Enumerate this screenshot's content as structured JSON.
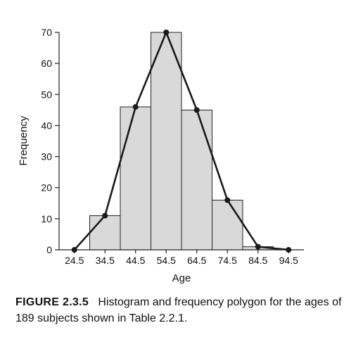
{
  "chart_data": {
    "type": "bar",
    "subtype": "histogram with frequency polygon",
    "title": "",
    "xlabel": "Age",
    "ylabel": "Frequency",
    "ylim": [
      0,
      70
    ],
    "yticks": [
      0,
      10,
      20,
      30,
      40,
      50,
      60,
      70
    ],
    "xticks": [
      "24.5",
      "34.5",
      "44.5",
      "54.5",
      "64.5",
      "74.5",
      "84.5",
      "94.5"
    ],
    "bins": [
      {
        "from": 29.5,
        "to": 39.5,
        "value": 11
      },
      {
        "from": 39.5,
        "to": 49.5,
        "value": 46
      },
      {
        "from": 49.5,
        "to": 59.5,
        "value": 70
      },
      {
        "from": 59.5,
        "to": 69.5,
        "value": 45
      },
      {
        "from": 69.5,
        "to": 79.5,
        "value": 16
      },
      {
        "from": 79.5,
        "to": 89.5,
        "value": 1
      }
    ],
    "polygon": {
      "x": [
        24.5,
        34.5,
        44.5,
        54.5,
        64.5,
        74.5,
        84.5,
        94.5
      ],
      "y": [
        0,
        11,
        46,
        70,
        45,
        16,
        1,
        0
      ]
    },
    "colors": {
      "bar_fill": "#d9d9d9",
      "bar_stroke": "#222222",
      "line": "#1a1a1a"
    }
  },
  "caption": {
    "label": "FIGURE 2.3.5",
    "text": "Histogram and frequency polygon for the ages of 189 subjects shown in Table 2.2.1."
  }
}
